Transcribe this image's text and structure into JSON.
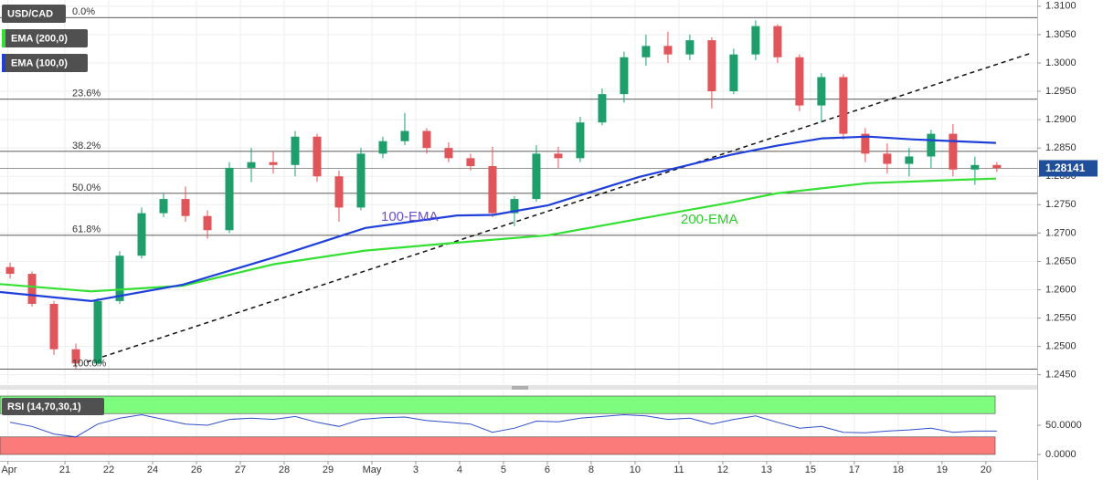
{
  "chart_data": [
    {
      "type": "candlestick",
      "title": "USD/CAD",
      "x": [
        -0.25,
        0.25,
        0.75,
        1.25,
        1.75,
        2.25,
        2.75,
        3.25,
        3.75,
        4.25,
        4.75,
        5.25,
        5.75,
        6.25,
        6.75,
        7.25,
        7.75,
        8.25,
        8.75,
        9.25,
        9.75,
        10.25,
        10.75,
        11.25,
        11.75,
        12.25,
        12.75,
        13.25,
        13.75,
        14.25,
        14.75,
        15.25,
        15.75,
        16.25,
        16.75,
        17.25,
        17.75,
        18.25,
        18.75,
        19.25,
        19.75,
        20.25,
        20.75,
        21.25,
        21.75,
        22.25
      ],
      "open": [
        1.264,
        1.2628,
        1.2575,
        1.2495,
        1.247,
        1.258,
        1.266,
        1.2735,
        1.276,
        1.273,
        1.2705,
        1.2815,
        1.2825,
        1.282,
        1.287,
        1.28,
        1.2745,
        1.284,
        1.2862,
        1.288,
        1.285,
        1.2832,
        1.2818,
        1.2735,
        1.276,
        1.284,
        1.2832,
        1.2895,
        1.2945,
        1.301,
        1.303,
        1.3015,
        1.304,
        1.295,
        1.3015,
        1.3065,
        1.301,
        1.2925,
        1.2975,
        1.2875,
        1.284,
        1.2822,
        1.2835,
        1.2875,
        1.2812,
        1.282
      ],
      "high": [
        1.2648,
        1.2632,
        1.258,
        1.2505,
        1.2585,
        1.2668,
        1.2745,
        1.277,
        1.2782,
        1.274,
        1.2825,
        1.285,
        1.2845,
        1.288,
        1.2875,
        1.281,
        1.285,
        1.287,
        1.2912,
        1.2885,
        1.286,
        1.284,
        1.2852,
        1.2765,
        1.2855,
        1.2852,
        1.2905,
        1.2955,
        1.302,
        1.305,
        1.3055,
        1.305,
        1.3045,
        1.3025,
        1.3075,
        1.3068,
        1.3015,
        1.2982,
        1.298,
        1.2885,
        1.2858,
        1.285,
        1.2882,
        1.2892,
        1.2835,
        1.2825
      ],
      "low": [
        1.262,
        1.257,
        1.2485,
        1.246,
        1.2465,
        1.2575,
        1.2655,
        1.2728,
        1.272,
        1.269,
        1.27,
        1.279,
        1.2805,
        1.28,
        1.279,
        1.272,
        1.274,
        1.2832,
        1.2855,
        1.284,
        1.2825,
        1.281,
        1.2728,
        1.2712,
        1.2755,
        1.2815,
        1.2825,
        1.289,
        1.293,
        1.2995,
        1.3,
        1.3005,
        1.292,
        1.2945,
        1.3005,
        1.3,
        1.2915,
        1.2895,
        1.2865,
        1.2825,
        1.2805,
        1.28,
        1.2815,
        1.28,
        1.2785,
        1.2808
      ],
      "close": [
        1.2628,
        1.2575,
        1.2495,
        1.247,
        1.258,
        1.266,
        1.2735,
        1.276,
        1.273,
        1.2705,
        1.2815,
        1.2825,
        1.282,
        1.287,
        1.28,
        1.2745,
        1.284,
        1.2862,
        1.288,
        1.285,
        1.2832,
        1.2818,
        1.2735,
        1.276,
        1.284,
        1.2832,
        1.2895,
        1.2945,
        1.301,
        1.303,
        1.3015,
        1.304,
        1.295,
        1.3015,
        1.3065,
        1.301,
        1.2925,
        1.2975,
        1.2875,
        1.284,
        1.2822,
        1.2835,
        1.2875,
        1.2812,
        1.282,
        1.28141
      ],
      "up_color": "#1f9e6c",
      "down_color": "#e0555a",
      "xlim": [
        -0.48,
        23.17
      ],
      "xticks": [
        {
          "value": -0.3,
          "label": "Apr"
        },
        {
          "value": 1,
          "label": "21"
        },
        {
          "value": 2,
          "label": "22"
        },
        {
          "value": 3,
          "label": "24"
        },
        {
          "value": 4,
          "label": "26"
        },
        {
          "value": 5,
          "label": "27"
        },
        {
          "value": 6,
          "label": "28"
        },
        {
          "value": 7,
          "label": "29"
        },
        {
          "value": 8,
          "label": "May"
        },
        {
          "value": 9,
          "label": "3"
        },
        {
          "value": 10,
          "label": "4"
        },
        {
          "value": 11,
          "label": "5"
        },
        {
          "value": 12,
          "label": "6"
        },
        {
          "value": 13,
          "label": "8"
        },
        {
          "value": 14,
          "label": "10"
        },
        {
          "value": 15,
          "label": "11"
        },
        {
          "value": 16,
          "label": "12"
        },
        {
          "value": 17,
          "label": "13"
        },
        {
          "value": 18,
          "label": "15"
        },
        {
          "value": 19,
          "label": "17"
        },
        {
          "value": 20,
          "label": "18"
        },
        {
          "value": 21,
          "label": "19"
        },
        {
          "value": 22,
          "label": "20"
        }
      ],
      "ylim": [
        1.2435,
        1.3111
      ],
      "yticks": [
        {
          "value": 1.245,
          "label": "1.2450"
        },
        {
          "value": 1.25,
          "label": "1.2500"
        },
        {
          "value": 1.255,
          "label": "1.2550"
        },
        {
          "value": 1.26,
          "label": "1.2600"
        },
        {
          "value": 1.265,
          "label": "1.2650"
        },
        {
          "value": 1.27,
          "label": "1.2700"
        },
        {
          "value": 1.275,
          "label": "1.2750"
        },
        {
          "value": 1.28,
          "label": "1.2800"
        },
        {
          "value": 1.285,
          "label": "1.2850"
        },
        {
          "value": 1.29,
          "label": "1.2900"
        },
        {
          "value": 1.295,
          "label": "1.2950"
        },
        {
          "value": 1.3,
          "label": "1.3000"
        },
        {
          "value": 1.305,
          "label": "1.3050"
        },
        {
          "value": 1.31,
          "label": "1.3100"
        }
      ],
      "grid": true,
      "last_price": 1.28141,
      "last_price_color": "#1f4e9a",
      "overlays": [
        {
          "name": "EMA (200,0)",
          "color": "#33e033",
          "annotation": "200-EMA",
          "annotation_color": "#2ecc2e",
          "x": [
            -0.48,
            1.6,
            3.69,
            5.77,
            7.85,
            9.94,
            12.02,
            14.1,
            16.19,
            17.23,
            19.31,
            21.4,
            22.23
          ],
          "values": [
            1.261,
            1.2597,
            1.2607,
            1.2645,
            1.2669,
            1.2683,
            1.2696,
            1.2725,
            1.2754,
            1.277,
            1.2788,
            1.2794,
            1.2796
          ]
        },
        {
          "name": "EMA (100,0)",
          "color": "#1f3fdb",
          "annotation": "100-EMA",
          "annotation_color": "#6a52c8",
          "x": [
            -0.48,
            1.6,
            3.69,
            5.77,
            7.85,
            9.94,
            10.77,
            12.02,
            14.1,
            16.19,
            17.23,
            18.27,
            19.31,
            20.35,
            22.23
          ],
          "values": [
            1.2596,
            1.258,
            1.2609,
            1.2657,
            1.2709,
            1.2731,
            1.2732,
            1.2749,
            1.2799,
            1.2838,
            1.2854,
            1.2867,
            1.287,
            1.2865,
            1.2859
          ]
        }
      ],
      "fib": {
        "labels": [
          "0.0%",
          "23.6%",
          "38.2%",
          "50.0%",
          "61.8%",
          "100.0%"
        ],
        "values": [
          1.308,
          1.2936,
          1.2844,
          1.277,
          1.2696,
          1.246
        ]
      },
      "trendline": {
        "x": [
          1.5,
          23.06
        ],
        "values": [
          1.24725,
          1.3018
        ]
      }
    },
    {
      "type": "line",
      "title": "RSI (14,70,30,1)",
      "color": "#3050c8",
      "x": [
        -0.25,
        0.25,
        0.75,
        1.25,
        1.75,
        2.25,
        2.75,
        3.25,
        3.75,
        4.25,
        4.75,
        5.25,
        5.75,
        6.25,
        6.75,
        7.25,
        7.75,
        8.25,
        8.75,
        9.25,
        9.75,
        10.25,
        10.75,
        11.25,
        11.75,
        12.25,
        12.75,
        13.25,
        13.75,
        14.25,
        14.75,
        15.25,
        15.75,
        16.25,
        16.75,
        17.25,
        17.75,
        18.25,
        18.75,
        19.25,
        19.75,
        20.25,
        20.75,
        21.25,
        21.75,
        22.25
      ],
      "values": [
        55,
        48,
        35,
        30,
        52,
        62,
        68,
        60,
        52,
        50,
        60,
        62,
        60,
        65,
        55,
        48,
        60,
        63,
        64,
        58,
        55,
        52,
        38,
        45,
        57,
        56,
        62,
        65,
        68,
        66,
        60,
        62,
        52,
        60,
        66,
        55,
        45,
        48,
        38,
        37,
        40,
        42,
        45,
        38,
        40,
        40
      ],
      "ylim": [
        -9.4,
        109.4
      ],
      "yticks": [
        {
          "value": 0,
          "label": "0.0000"
        },
        {
          "value": 50,
          "label": "50.0000"
        }
      ],
      "bands": [
        {
          "range": [
            70,
            100
          ],
          "color": "#7dfc7d"
        },
        {
          "range": [
            0,
            30
          ],
          "color": "#fb7b7b"
        }
      ]
    }
  ]
}
